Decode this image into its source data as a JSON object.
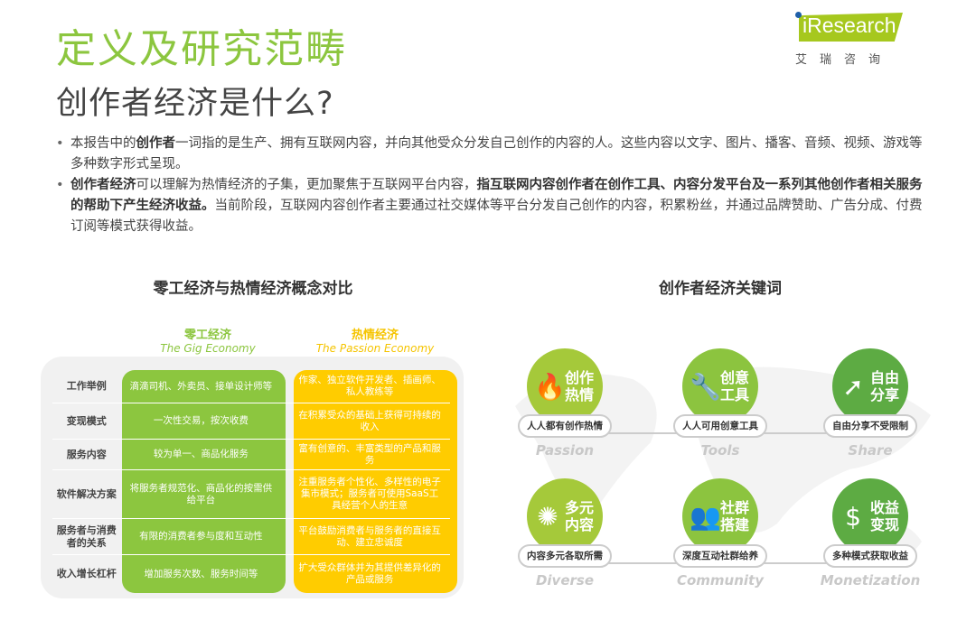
{
  "header": {
    "title": "定义及研究范畴",
    "subtitle": "创作者经济是什么?"
  },
  "logo": {
    "text": "iResearch",
    "cn": "艾瑞咨询",
    "color": "#a6c81e"
  },
  "bullets": [
    {
      "p1": "本报告中的",
      "b1": "创作者",
      "p2": "一词指的是生产、拥有互联网内容，并向其他受众分发自己创作的内容的人。这些内容以文字、图片、播客、音频、视频、游戏等多种数字形式呈现。"
    },
    {
      "b1": "创作者经济",
      "p2": "可以理解为热情经济的子集，更加聚焦于互联网平台内容，",
      "b2": "指互联网内容创作者在创作工具、内容分发平台及一系列其他创作者相关服务的帮助下产生经济收益。",
      "p3": "当前阶段，互联网内容创作者主要通过社交媒体等平台分发自己创作的内容，积累粉丝，并通过品牌赞助、广告分成、付费订阅等模式获得收益。"
    }
  ],
  "comparison": {
    "title": "零工经济与热情经济概念对比",
    "gig": {
      "cn": "零工经济",
      "en": "The Gig Economy",
      "color": "#8cc63f"
    },
    "passion": {
      "cn": "热情经济",
      "en": "The Passion Economy",
      "color": "#ffcc00"
    },
    "rows": [
      {
        "label": "工作举例",
        "gig": "滴滴司机、外卖员、接单设计师等",
        "passion": "作家、独立软件开发者、插画师、私人教练等"
      },
      {
        "label": "变现模式",
        "gig": "一次性交易，按次收费",
        "passion": "在积累受众的基础上获得可持续的收入"
      },
      {
        "label": "服务内容",
        "gig": "较为单一、商品化服务",
        "passion": "富有创意的、丰富类型的产品和服务"
      },
      {
        "label": "软件解决方案",
        "gig": "将服务者规范化、商品化的按需供给平台",
        "passion": "注重服务者个性化、多样性的电子集市模式；服务者可使用SaaS工具经营个人的生意"
      },
      {
        "label": "服务者与消费者的关系",
        "gig": "有限的消费者参与度和互动性",
        "passion": "平台鼓励消费者与服务者的直接互动、建立忠诚度"
      },
      {
        "label": "收入增长杠杆",
        "gig": "增加服务次数、服务时间等",
        "passion": "扩大受众群体并为其提供差异化的产品或服务"
      }
    ]
  },
  "keywords": {
    "title": "创作者经济关键词",
    "items": [
      {
        "title": "创作热情",
        "icon": "flame-icon",
        "glyph": "🔥",
        "desc": "人人都有创作热情",
        "en": "Passion",
        "color": "#a5c93a"
      },
      {
        "title": "创意工具",
        "icon": "wrench-icon",
        "glyph": "🔧",
        "desc": "人人可用创意工具",
        "en": "Tools",
        "color": "#8cc43f"
      },
      {
        "title": "自由分享",
        "icon": "share-arrow-icon",
        "glyph": "➚",
        "desc": "自由分享不受限制",
        "en": "Share",
        "color": "#5dab43"
      },
      {
        "title": "多元内容",
        "icon": "sunburst-icon",
        "glyph": "✺",
        "desc": "内容多元各取所需",
        "en": "Diverse",
        "color": "#a5c93a"
      },
      {
        "title": "社群搭建",
        "icon": "community-icon",
        "glyph": "👥",
        "desc": "深度互动社群给养",
        "en": "Community",
        "color": "#8cc43f"
      },
      {
        "title": "收益变现",
        "icon": "money-bag-icon",
        "glyph": "$",
        "desc": "多种模式获取收益",
        "en": "Monetization",
        "color": "#5dab43"
      }
    ]
  }
}
